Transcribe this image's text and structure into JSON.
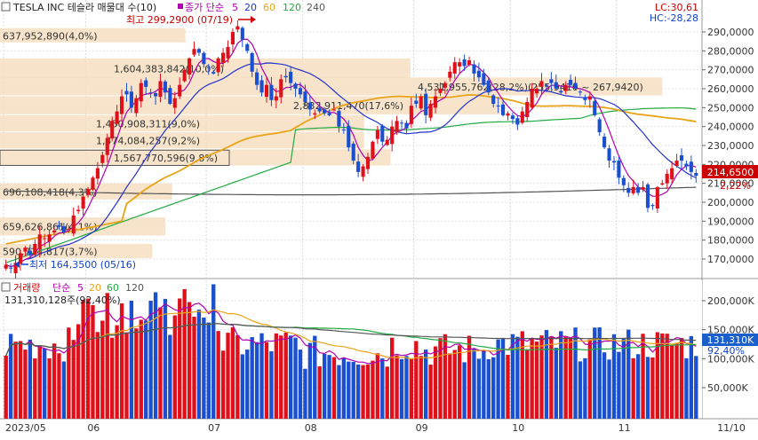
{
  "header": {
    "title": "TESLA INC  테슬라 매물대 수(10)",
    "ma_prefix": "종가 단순",
    "ma_periods": [
      "5",
      "20",
      "60",
      "120",
      "240"
    ],
    "ma_colors": [
      "#b000b0",
      "#2233cc",
      "#e8a317",
      "#22aa44",
      "#555555"
    ],
    "lc": "LC:30,61",
    "hc": "HC:-28,28"
  },
  "price_panel": {
    "high_label": "최고 299,2900 (07/19)",
    "low_label": "최저 164,3500 (05/16)",
    "current_price": "214,6500",
    "change_pct": "2,22%",
    "y_axis": [
      "290,0000",
      "280,0000",
      "270,0000",
      "260,0000",
      "250,0000",
      "240,0000",
      "230,0000",
      "220,0000",
      "210,0000",
      "200,0000",
      "190,0000",
      "180,0000",
      "170,0000"
    ],
    "volume_profile": [
      {
        "text": "637,952,890(4,0%)",
        "from": 284,
        "to": 292,
        "length": 0.28
      },
      {
        "text": "1,604,383,842(10,0%)",
        "from": 265,
        "to": 276,
        "length": 0.62
      },
      {
        "text": "4,531,955,762(28,2%)(255,9410 ~ 267,9420)",
        "from": 256,
        "to": 266,
        "length": 1.0
      },
      {
        "text": "2,832,911,470(17,6%)",
        "from": 246,
        "to": 256,
        "length": 0.76
      },
      {
        "text": "1,450,908,311(9,0%)",
        "from": 237,
        "to": 246,
        "length": 0.55
      },
      {
        "text": "1,474,084,257(9,2%)",
        "from": 228,
        "to": 237,
        "length": 0.55
      },
      {
        "text": "1,567,770,596(9,8%)",
        "from": 219,
        "to": 228,
        "length": 0.59
      },
      {
        "text": "696,108,418(4,3%)",
        "from": 201,
        "to": 210,
        "length": 0.26
      },
      {
        "text": "659,626,861(4,1%)",
        "from": 182,
        "to": 192,
        "length": 0.25
      },
      {
        "text": "590,724,817(3,7%)",
        "from": 170,
        "to": 178,
        "length": 0.23
      }
    ]
  },
  "volume_panel": {
    "title": "거래량",
    "ma_prefix": "단순",
    "ma_periods": [
      "5",
      "20",
      "60",
      "120"
    ],
    "ma_colors": [
      "#b000b0",
      "#e8a317",
      "#22aa44",
      "#555555"
    ],
    "value_label": "131,310,128주(92,40%)",
    "current_volume": "131,310K",
    "current_pct": "92,40%",
    "y_axis": [
      "200,000K",
      "150,000K",
      "100,000K",
      "50,000K"
    ]
  },
  "x_axis": {
    "labels": [
      "2023/05",
      "06",
      "07",
      "08",
      "09",
      "10",
      "11"
    ],
    "right_label": "11/10"
  },
  "chart_data": {
    "type": "candlestick",
    "price_range": [
      160,
      300
    ],
    "volume_range": [
      0,
      230
    ],
    "volume_unit": "M shares",
    "start": 0,
    "month_ticks": [
      {
        "label": "2023/05",
        "index": 0
      },
      {
        "label": "06",
        "index": 17
      },
      {
        "label": "07",
        "index": 42
      },
      {
        "label": "08",
        "index": 62
      },
      {
        "label": "09",
        "index": 85
      },
      {
        "label": "10",
        "index": 105
      },
      {
        "label": "11",
        "index": 127
      }
    ],
    "closes": [
      167,
      165,
      168,
      173,
      176,
      172,
      178,
      183,
      181,
      183,
      185,
      187,
      184,
      186,
      193,
      196,
      203,
      207,
      213,
      218,
      225,
      234,
      243,
      248,
      256,
      257,
      250,
      255,
      263,
      261,
      258,
      256,
      264,
      258,
      252,
      255,
      262,
      270,
      276,
      281,
      279,
      273,
      271,
      268,
      276,
      279,
      282,
      290,
      293,
      286,
      280,
      269,
      262,
      258,
      262,
      254,
      256,
      265,
      266,
      263,
      260,
      257,
      253,
      249,
      247,
      248,
      247,
      246,
      249,
      240,
      238,
      229,
      222,
      216,
      219,
      224,
      232,
      238,
      232,
      233,
      240,
      243,
      242,
      239,
      251,
      252,
      256,
      246,
      252,
      256,
      260,
      263,
      269,
      274,
      274,
      272,
      275,
      268,
      266,
      262,
      258,
      252,
      251,
      246,
      247,
      244,
      241,
      248,
      253,
      260,
      260,
      264,
      262,
      263,
      260,
      258,
      262,
      262,
      260,
      258,
      254,
      256,
      246,
      237,
      229,
      222,
      221,
      213,
      209,
      205,
      208,
      205,
      208,
      197,
      198,
      208,
      210,
      215,
      218,
      222,
      222,
      219,
      216,
      214
    ]
  }
}
